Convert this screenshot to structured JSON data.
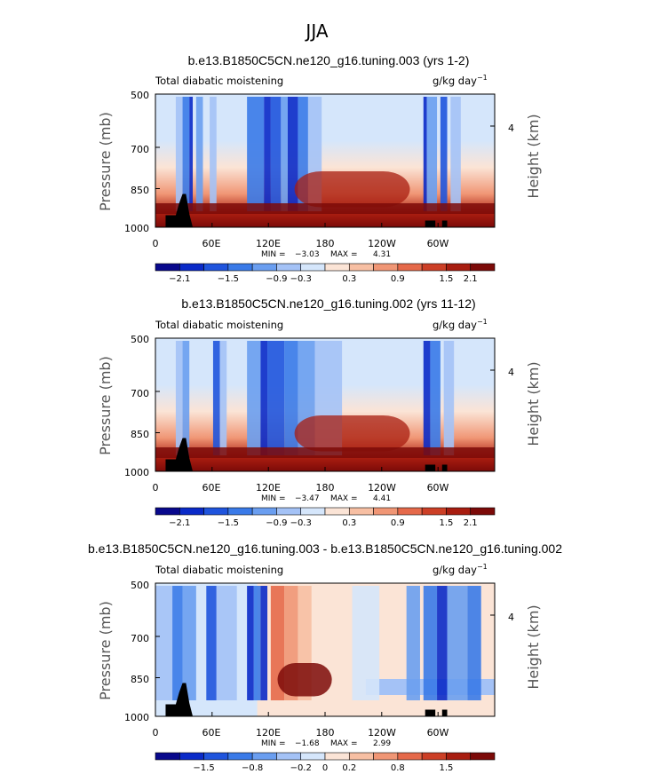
{
  "figure": {
    "title": "JJA"
  },
  "colorbar_colors": [
    "#08088c",
    "#0a2ac8",
    "#1f54dd",
    "#3a7ae8",
    "#6a9ef0",
    "#a4c2f6",
    "#d5e6fb",
    "#fbe4d6",
    "#f7bfa3",
    "#f09675",
    "#e5694a",
    "#cc3f26",
    "#a81d10",
    "#7c0a08"
  ],
  "chart_data": [
    {
      "type": "heatmap",
      "title": "b.e13.B1850C5CN.ne120_g16.tuning.003 (yrs 1-2)",
      "variable_label": "Total diabatic moistening",
      "units_label": "g/kg day",
      "units_exponent": "−1",
      "xticks": [
        "0",
        "60E",
        "120E",
        "180",
        "120W",
        "60W"
      ],
      "yticks": [
        "500",
        "700",
        "850",
        "1000"
      ],
      "ylabel": "Pressure (mb)",
      "right_label": "Height (km)",
      "right_ticks": [
        "4"
      ],
      "min_label": "MIN =",
      "min": "−3.03",
      "max_label": "MAX =",
      "max": "4.31",
      "colorbar_ticks": [
        "−2.1",
        "−1.5",
        "−0.9",
        "−0.3",
        "0.3",
        "0.9",
        "1.5",
        "2.1"
      ],
      "colorbar_levels": [
        -2.4,
        -2.1,
        -1.8,
        -1.5,
        -1.2,
        -0.9,
        -0.6,
        -0.3,
        0.3,
        0.6,
        0.9,
        1.2,
        1.5,
        1.8,
        2.1,
        2.4
      ]
    },
    {
      "type": "heatmap",
      "title": "b.e13.B1850C5CN.ne120_g16.tuning.002 (yrs 11-12)",
      "variable_label": "Total diabatic moistening",
      "units_label": "g/kg day",
      "units_exponent": "−1",
      "xticks": [
        "0",
        "60E",
        "120E",
        "180",
        "120W",
        "60W"
      ],
      "yticks": [
        "500",
        "700",
        "850",
        "1000"
      ],
      "ylabel": "Pressure (mb)",
      "right_label": "Height (km)",
      "right_ticks": [
        "4"
      ],
      "min_label": "MIN =",
      "min": "−3.47",
      "max_label": "MAX =",
      "max": "4.41",
      "colorbar_ticks": [
        "−2.1",
        "−1.5",
        "−0.9",
        "−0.3",
        "0.3",
        "0.9",
        "1.5",
        "2.1"
      ],
      "colorbar_levels": [
        -2.4,
        -2.1,
        -1.8,
        -1.5,
        -1.2,
        -0.9,
        -0.6,
        -0.3,
        0.3,
        0.6,
        0.9,
        1.2,
        1.5,
        1.8,
        2.1,
        2.4
      ]
    },
    {
      "type": "heatmap",
      "title": "b.e13.B1850C5CN.ne120_g16.tuning.003 - b.e13.B1850C5CN.ne120_g16.tuning.002",
      "variable_label": "Total diabatic moistening",
      "units_label": "g/kg day",
      "units_exponent": "−1",
      "xticks": [
        "0",
        "60E",
        "120E",
        "180",
        "120W",
        "60W"
      ],
      "yticks": [
        "500",
        "700",
        "850",
        "1000"
      ],
      "ylabel": "Pressure (mb)",
      "right_label": "Height (km)",
      "right_ticks": [
        "4"
      ],
      "min_label": "MIN =",
      "min": "−1.68",
      "max_label": "MAX =",
      "max": "2.99",
      "colorbar_ticks": [
        "−1.5",
        "−0.8",
        "−0.2",
        "0",
        "0.2",
        "0.8",
        "1.5"
      ],
      "colorbar_levels": [
        -2.0,
        -1.5,
        -1.2,
        -0.8,
        -0.5,
        -0.2,
        -0.1,
        0,
        0.1,
        0.2,
        0.5,
        0.8,
        1.2,
        1.5,
        2.0
      ]
    }
  ]
}
